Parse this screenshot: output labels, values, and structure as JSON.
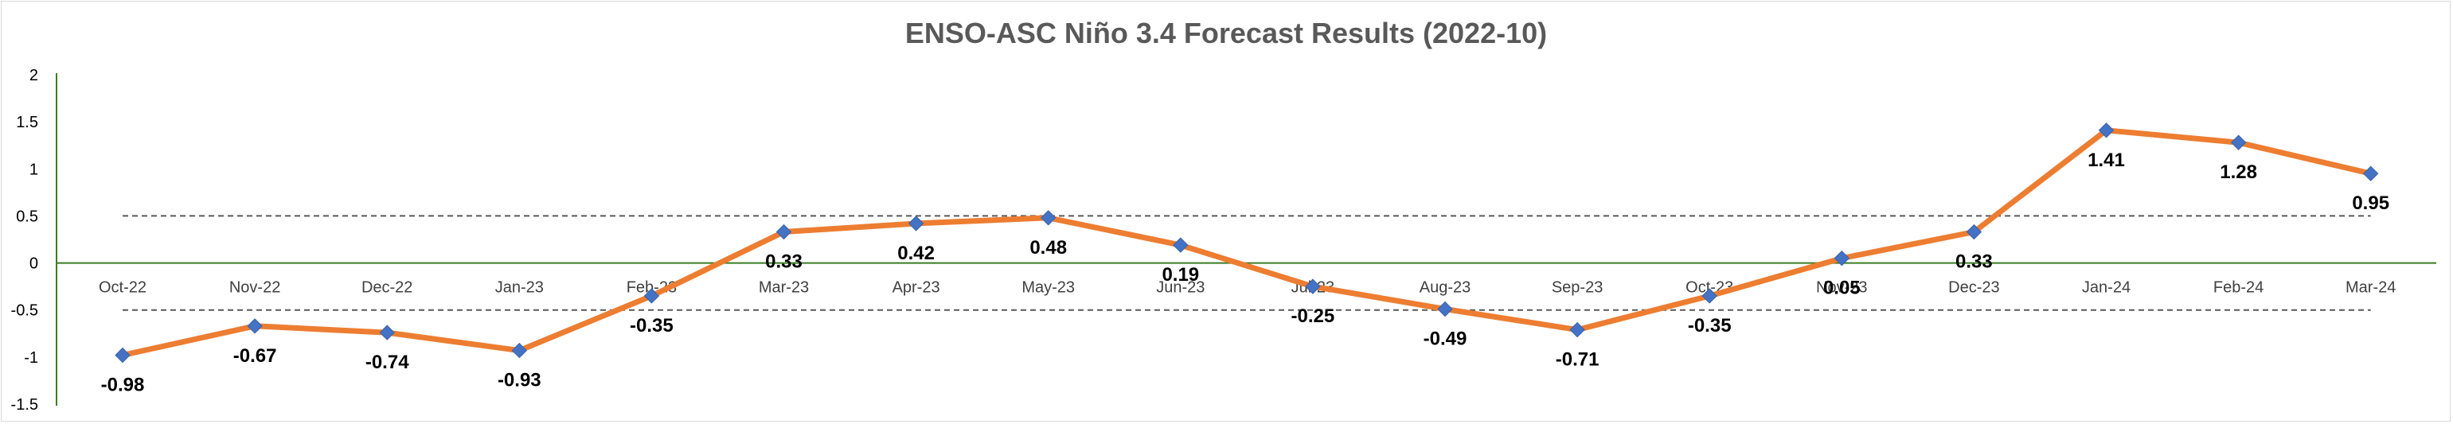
{
  "chart_data": {
    "type": "line",
    "title": "ENSO-ASC Niño 3.4 Forecast Results (2022-10)",
    "xlabel": "",
    "ylabel": "",
    "ylim": [
      -1.5,
      2
    ],
    "yticks": [
      "2",
      "1.5",
      "1",
      "0.5",
      "0",
      "-0.5",
      "-1",
      "-1.5"
    ],
    "ytick_values": [
      2,
      1.5,
      1,
      0.5,
      0,
      -0.5,
      -1,
      -1.5
    ],
    "categories": [
      "Oct-22",
      "Nov-22",
      "Dec-22",
      "Jan-23",
      "Feb-23",
      "Mar-23",
      "Apr-23",
      "May-23",
      "Jun-23",
      "Jul-23",
      "Aug-23",
      "Sep-23",
      "Oct-23",
      "Nov-23",
      "Dec-23",
      "Jan-24",
      "Feb-24",
      "Mar-24"
    ],
    "series": [
      {
        "values": [
          -0.98,
          -0.67,
          -0.74,
          -0.93,
          -0.35,
          0.33,
          0.42,
          0.48,
          0.19,
          -0.25,
          -0.49,
          -0.71,
          -0.35,
          0.05,
          0.33,
          1.41,
          1.28,
          0.95
        ],
        "labels": [
          "-0.98",
          "-0.67",
          "-0.74",
          "-0.93",
          "-0.35",
          "0.33",
          "0.42",
          "0.48",
          "0.19",
          "-0.25",
          "-0.49",
          "-0.71",
          "-0.35",
          "0.05",
          "0.33",
          "1.41",
          "1.28",
          "0.95"
        ],
        "line_color": "#ED7D31",
        "marker_color": "#4472C4"
      }
    ],
    "reference_lines": [
      0.5,
      -0.5
    ],
    "axis_color": "#3a7d22",
    "grid": false,
    "legend": "none"
  }
}
